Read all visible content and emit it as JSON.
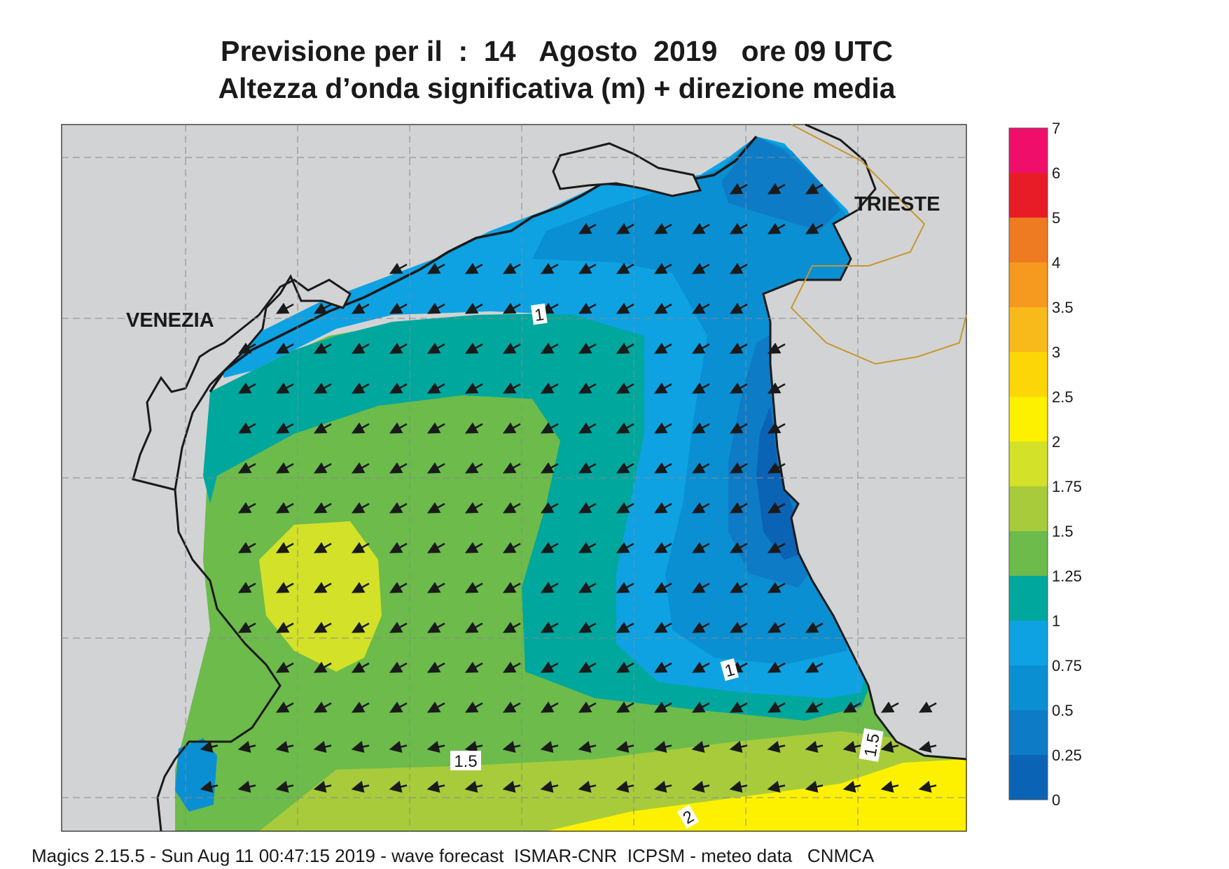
{
  "header": {
    "title_line1": "Previsione per il  :  14   Agosto  2019   ore 09 UTC",
    "title_line2": "Altezza d’onda significativa (m) + direzione media"
  },
  "map": {
    "city_labels": [
      "VENEZIA",
      "TRIESTE"
    ],
    "contour_labels": [
      "1",
      "1",
      "1.5",
      "1.5",
      "2"
    ],
    "arrow_direction": "south-west",
    "land_color": "#d2d3d4",
    "coast_color": "#1a1a1a",
    "border_color": "#c8962e"
  },
  "legend": {
    "ticks": [
      "7",
      "6",
      "5",
      "4",
      "3.5",
      "3",
      "2.5",
      "2",
      "1.75",
      "1.5",
      "1.25",
      "1",
      "0.75",
      "0.5",
      "0.25",
      "0"
    ],
    "colors": [
      "#ef0f6a",
      "#e81c26",
      "#ee7a22",
      "#f59a1f",
      "#f8b91b",
      "#fdd607",
      "#fef100",
      "#d3e128",
      "#a8cb3c",
      "#6cbb4b",
      "#00a79d",
      "#0ea2e3",
      "#0a8fd3",
      "#0e7bc6",
      "#0b63b6"
    ]
  },
  "footer": {
    "text": "Magics 2.15.5 - Sun Aug 11 00:47:15 2019 - wave forecast  ISMAR-CNR  ICPSM - meteo data   CNMCA"
  }
}
